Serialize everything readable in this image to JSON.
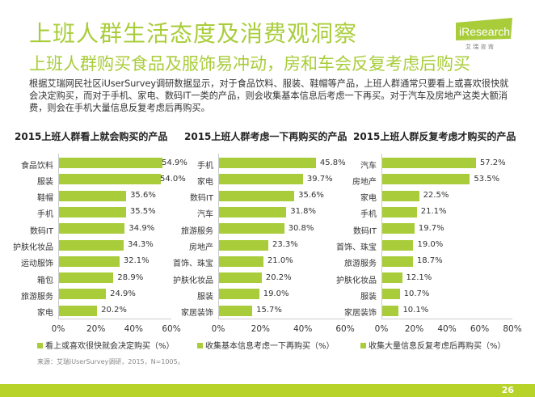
{
  "header": {
    "title": "上班人群生活态度及消费观洞察",
    "subtitle": "上班人群购买食品及服饰易冲动，房和车会反复考虑后购买",
    "body": "根据艾瑞网民社区iUserSurvey调研数据显示，对于食品饮料、服装、鞋帽等产品，上班人群通常只要看上或喜欢很快就会决定购买，而对于手机、家电、数码IT一类的产品，则会收集基本信息后考虑一下再买。对于汽车及房地产这类大额消费，则会在手机大量信息反复考虑后再购买。"
  },
  "logo": {
    "text": "iResearch",
    "sub": "艾 瑞 咨 询"
  },
  "colors": {
    "bar": "#a9cd3a",
    "footer": "#b7d32a"
  },
  "chart_data": [
    {
      "type": "bar",
      "orientation": "horizontal",
      "title": "2015上班人群看上就会购买的产品",
      "categories": [
        "食品饮料",
        "服装",
        "鞋帽",
        "手机",
        "数码IT",
        "护肤化妆品",
        "运动服饰",
        "箱包",
        "旅游服务",
        "家电"
      ],
      "series": [
        {
          "name": "看上或喜欢很快就会决定购买（%）",
          "values": [
            54.9,
            54.0,
            35.6,
            35.5,
            34.9,
            34.3,
            32.1,
            28.9,
            24.9,
            20.2
          ]
        }
      ],
      "labels": [
        "54.9%",
        "54.0%",
        "35.6%",
        "35.5%",
        "34.9%",
        "34.3%",
        "32.1%",
        "28.9%",
        "24.9%",
        "20.2%"
      ],
      "xlim": [
        0,
        60
      ],
      "ticks": [
        "0%",
        "20%",
        "40%",
        "60%"
      ],
      "legend": "bottom"
    },
    {
      "type": "bar",
      "orientation": "horizontal",
      "title": "2015上班人群考虑一下再购买的产品",
      "categories": [
        "手机",
        "家电",
        "数码IT",
        "汽车",
        "旅游服务",
        "房地产",
        "首饰、珠宝",
        "护肤化妆品",
        "服装",
        "家居装饰"
      ],
      "series": [
        {
          "name": "收集基本信息考虑一下再购买（%）",
          "values": [
            45.8,
            39.7,
            35.6,
            31.8,
            30.8,
            23.3,
            21.0,
            20.2,
            19.0,
            15.7
          ]
        }
      ],
      "labels": [
        "45.8%",
        "39.7%",
        "35.6%",
        "31.8%",
        "30.8%",
        "23.3%",
        "21.0%",
        "20.2%",
        "19.0%",
        "15.7%"
      ],
      "xlim": [
        0,
        60
      ],
      "ticks": [
        "0%",
        "20%",
        "40%",
        "60%"
      ],
      "legend": "bottom"
    },
    {
      "type": "bar",
      "orientation": "horizontal",
      "title": "2015上班人群反复考虑才购买的产品",
      "categories": [
        "汽车",
        "房地产",
        "家电",
        "手机",
        "数码IT",
        "首饰、珠宝",
        "旅游服务",
        "护肤化妆品",
        "服装",
        "家居装饰"
      ],
      "series": [
        {
          "name": "收集大量信息反复考虑后再购买（%）",
          "values": [
            57.2,
            53.5,
            22.5,
            21.1,
            19.7,
            19.0,
            18.7,
            12.1,
            10.7,
            10.1
          ]
        }
      ],
      "labels": [
        "57.2%",
        "53.5%",
        "22.5%",
        "21.1%",
        "19.7%",
        "19.0%",
        "18.7%",
        "12.1%",
        "10.7%",
        "10.1%"
      ],
      "xlim": [
        0,
        80
      ],
      "ticks": [
        "0%",
        "20%",
        "40%",
        "60%",
        "80%"
      ],
      "legend": "bottom"
    }
  ],
  "source": "来源：艾瑞iUserSurvey调研，2015，N=1005。",
  "page_number": "26"
}
